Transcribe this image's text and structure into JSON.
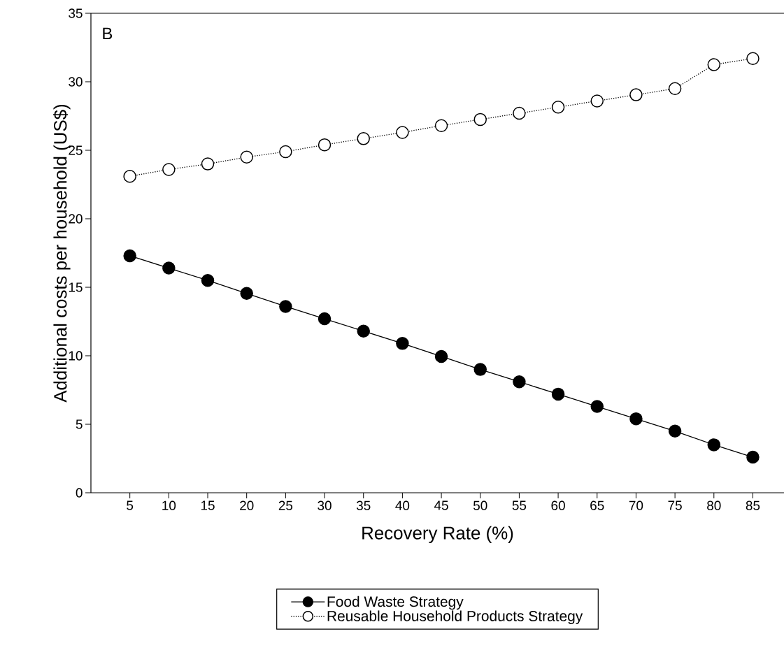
{
  "chart_data": {
    "type": "line",
    "xlabel": "Recovery Rate (%)",
    "ylabel": "Additional costs per household (US$)",
    "annotations": [
      "B"
    ],
    "x": [
      5,
      10,
      15,
      20,
      25,
      30,
      35,
      40,
      45,
      50,
      55,
      60,
      65,
      70,
      75,
      80,
      85
    ],
    "xlim": [
      0,
      89
    ],
    "xticks": [
      5,
      10,
      15,
      20,
      25,
      30,
      35,
      40,
      45,
      50,
      55,
      60,
      65,
      70,
      75,
      80,
      85
    ],
    "ylim": [
      0,
      35
    ],
    "yticks": [
      0,
      5,
      10,
      15,
      20,
      25,
      30,
      35
    ],
    "marker": "circle",
    "grid": false,
    "legend": "bottom",
    "series": [
      {
        "name": "Food Waste Strategy",
        "color": "#000000",
        "line_style": "solid",
        "values": [
          17.3,
          16.4,
          15.5,
          14.55,
          13.6,
          12.7,
          11.8,
          10.9,
          9.95,
          9.0,
          8.1,
          7.2,
          6.3,
          5.4,
          4.5,
          3.5,
          2.6
        ]
      },
      {
        "name": "Reusable Household Products Strategy",
        "color": "#000000",
        "line_style": "dotted",
        "values": [
          23.1,
          23.6,
          24.0,
          24.5,
          24.9,
          25.4,
          25.85,
          26.3,
          26.8,
          27.25,
          27.7,
          28.15,
          28.6,
          29.05,
          29.5,
          31.25,
          31.7
        ]
      }
    ]
  }
}
